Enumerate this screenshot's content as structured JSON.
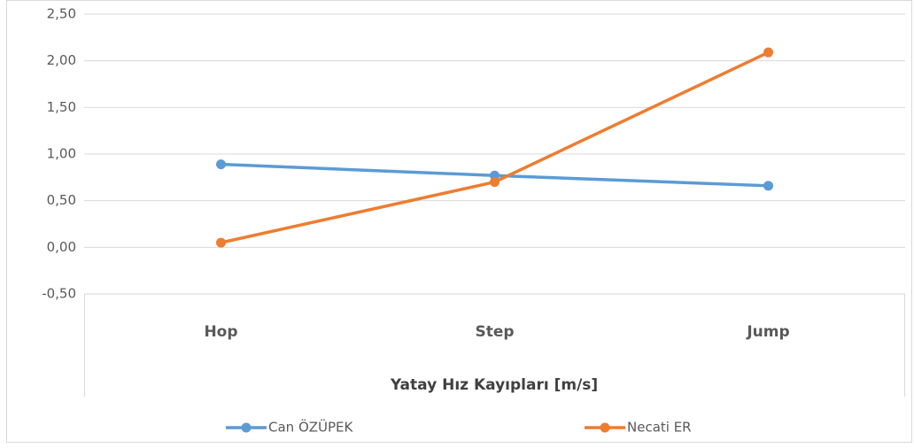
{
  "chart_data": {
    "type": "line",
    "x_label": "Yatay Hız Kayıpları  [m/s]",
    "categories": [
      "Hop",
      "Step",
      "Jump"
    ],
    "series": [
      {
        "name": "Can ÖZÜPEK",
        "color": "#5b9bd5",
        "values": [
          0.89,
          0.77,
          0.66
        ]
      },
      {
        "name": "Necati ER",
        "color": "#ed7d31",
        "values": [
          0.05,
          0.7,
          2.09
        ]
      }
    ],
    "ylim": [
      -0.5,
      2.5
    ],
    "yticks": [
      {
        "value": -0.5,
        "label": "-0,50"
      },
      {
        "value": 0,
        "label": "0,00"
      },
      {
        "value": 0.5,
        "label": "0,50"
      },
      {
        "value": 1,
        "label": "1,00"
      },
      {
        "value": 1.5,
        "label": "1,50"
      },
      {
        "value": 2,
        "label": "2,00"
      },
      {
        "value": 2.5,
        "label": "2,50"
      }
    ],
    "grid": true,
    "legend": "bottom"
  }
}
